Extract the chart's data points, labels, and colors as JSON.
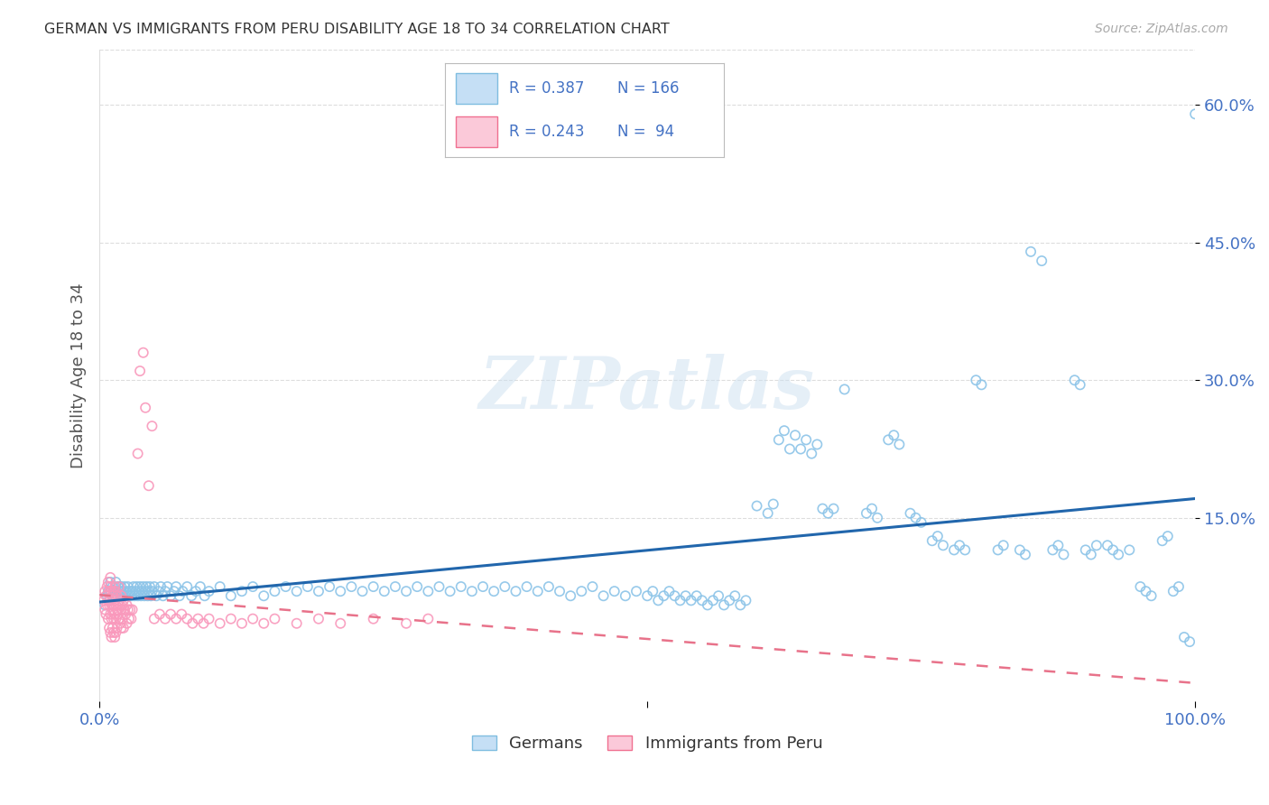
{
  "title": "GERMAN VS IMMIGRANTS FROM PERU DISABILITY AGE 18 TO 34 CORRELATION CHART",
  "source": "Source: ZipAtlas.com",
  "ylabel": "Disability Age 18 to 34",
  "y_tick_labels": [
    "60.0%",
    "45.0%",
    "30.0%",
    "15.0%"
  ],
  "y_tick_values": [
    0.6,
    0.45,
    0.3,
    0.15
  ],
  "xlim": [
    0.0,
    1.0
  ],
  "ylim": [
    -0.05,
    0.66
  ],
  "legend_blue_label": "Germans",
  "legend_pink_label": "Immigrants from Peru",
  "r_blue": "R = 0.387",
  "n_blue": "N = 166",
  "r_pink": "R = 0.243",
  "n_pink": "N =  94",
  "blue_scatter_color": "#8cc4e8",
  "pink_scatter_color": "#f999bc",
  "blue_line_color": "#2166ac",
  "pink_line_color": "#e8728a",
  "pink_dash_color": "#d4a0b0",
  "watermark": "ZIPatlas",
  "background_color": "#ffffff",
  "grid_color": "#dddddd",
  "blue_scatter": [
    [
      0.005,
      0.055
    ],
    [
      0.007,
      0.065
    ],
    [
      0.008,
      0.07
    ],
    [
      0.009,
      0.06
    ],
    [
      0.01,
      0.07
    ],
    [
      0.01,
      0.08
    ],
    [
      0.012,
      0.065
    ],
    [
      0.012,
      0.075
    ],
    [
      0.013,
      0.07
    ],
    [
      0.014,
      0.065
    ],
    [
      0.015,
      0.07
    ],
    [
      0.015,
      0.08
    ],
    [
      0.016,
      0.065
    ],
    [
      0.017,
      0.075
    ],
    [
      0.018,
      0.07
    ],
    [
      0.018,
      0.075
    ],
    [
      0.019,
      0.065
    ],
    [
      0.02,
      0.07
    ],
    [
      0.02,
      0.075
    ],
    [
      0.021,
      0.065
    ],
    [
      0.022,
      0.07
    ],
    [
      0.023,
      0.075
    ],
    [
      0.024,
      0.065
    ],
    [
      0.025,
      0.07
    ],
    [
      0.026,
      0.075
    ],
    [
      0.027,
      0.065
    ],
    [
      0.028,
      0.07
    ],
    [
      0.029,
      0.065
    ],
    [
      0.03,
      0.07
    ],
    [
      0.031,
      0.075
    ],
    [
      0.032,
      0.065
    ],
    [
      0.033,
      0.07
    ],
    [
      0.034,
      0.075
    ],
    [
      0.035,
      0.065
    ],
    [
      0.036,
      0.07
    ],
    [
      0.037,
      0.075
    ],
    [
      0.038,
      0.065
    ],
    [
      0.039,
      0.07
    ],
    [
      0.04,
      0.075
    ],
    [
      0.041,
      0.065
    ],
    [
      0.042,
      0.07
    ],
    [
      0.043,
      0.075
    ],
    [
      0.044,
      0.065
    ],
    [
      0.045,
      0.07
    ],
    [
      0.046,
      0.075
    ],
    [
      0.047,
      0.065
    ],
    [
      0.048,
      0.07
    ],
    [
      0.05,
      0.075
    ],
    [
      0.052,
      0.065
    ],
    [
      0.054,
      0.07
    ],
    [
      0.056,
      0.075
    ],
    [
      0.058,
      0.065
    ],
    [
      0.06,
      0.07
    ],
    [
      0.062,
      0.075
    ],
    [
      0.065,
      0.065
    ],
    [
      0.068,
      0.07
    ],
    [
      0.07,
      0.075
    ],
    [
      0.073,
      0.065
    ],
    [
      0.076,
      0.07
    ],
    [
      0.08,
      0.075
    ],
    [
      0.084,
      0.065
    ],
    [
      0.088,
      0.07
    ],
    [
      0.092,
      0.075
    ],
    [
      0.096,
      0.065
    ],
    [
      0.1,
      0.07
    ],
    [
      0.11,
      0.075
    ],
    [
      0.12,
      0.065
    ],
    [
      0.13,
      0.07
    ],
    [
      0.14,
      0.075
    ],
    [
      0.15,
      0.065
    ],
    [
      0.16,
      0.07
    ],
    [
      0.17,
      0.075
    ],
    [
      0.18,
      0.07
    ],
    [
      0.19,
      0.075
    ],
    [
      0.2,
      0.07
    ],
    [
      0.21,
      0.075
    ],
    [
      0.22,
      0.07
    ],
    [
      0.23,
      0.075
    ],
    [
      0.24,
      0.07
    ],
    [
      0.25,
      0.075
    ],
    [
      0.26,
      0.07
    ],
    [
      0.27,
      0.075
    ],
    [
      0.28,
      0.07
    ],
    [
      0.29,
      0.075
    ],
    [
      0.3,
      0.07
    ],
    [
      0.31,
      0.075
    ],
    [
      0.32,
      0.07
    ],
    [
      0.33,
      0.075
    ],
    [
      0.34,
      0.07
    ],
    [
      0.35,
      0.075
    ],
    [
      0.36,
      0.07
    ],
    [
      0.37,
      0.075
    ],
    [
      0.38,
      0.07
    ],
    [
      0.39,
      0.075
    ],
    [
      0.4,
      0.07
    ],
    [
      0.41,
      0.075
    ],
    [
      0.42,
      0.07
    ],
    [
      0.43,
      0.065
    ],
    [
      0.44,
      0.07
    ],
    [
      0.45,
      0.075
    ],
    [
      0.46,
      0.065
    ],
    [
      0.47,
      0.07
    ],
    [
      0.48,
      0.065
    ],
    [
      0.49,
      0.07
    ],
    [
      0.5,
      0.065
    ],
    [
      0.505,
      0.07
    ],
    [
      0.51,
      0.06
    ],
    [
      0.515,
      0.065
    ],
    [
      0.52,
      0.07
    ],
    [
      0.525,
      0.065
    ],
    [
      0.53,
      0.06
    ],
    [
      0.535,
      0.065
    ],
    [
      0.54,
      0.06
    ],
    [
      0.545,
      0.065
    ],
    [
      0.55,
      0.06
    ],
    [
      0.555,
      0.055
    ],
    [
      0.56,
      0.06
    ],
    [
      0.565,
      0.065
    ],
    [
      0.57,
      0.055
    ],
    [
      0.575,
      0.06
    ],
    [
      0.58,
      0.065
    ],
    [
      0.585,
      0.055
    ],
    [
      0.59,
      0.06
    ],
    [
      0.6,
      0.163
    ],
    [
      0.61,
      0.155
    ],
    [
      0.615,
      0.165
    ],
    [
      0.62,
      0.235
    ],
    [
      0.625,
      0.245
    ],
    [
      0.63,
      0.225
    ],
    [
      0.635,
      0.24
    ],
    [
      0.64,
      0.225
    ],
    [
      0.645,
      0.235
    ],
    [
      0.65,
      0.22
    ],
    [
      0.655,
      0.23
    ],
    [
      0.66,
      0.16
    ],
    [
      0.665,
      0.155
    ],
    [
      0.67,
      0.16
    ],
    [
      0.68,
      0.29
    ],
    [
      0.7,
      0.155
    ],
    [
      0.705,
      0.16
    ],
    [
      0.71,
      0.15
    ],
    [
      0.72,
      0.235
    ],
    [
      0.725,
      0.24
    ],
    [
      0.73,
      0.23
    ],
    [
      0.74,
      0.155
    ],
    [
      0.745,
      0.15
    ],
    [
      0.75,
      0.145
    ],
    [
      0.76,
      0.125
    ],
    [
      0.765,
      0.13
    ],
    [
      0.77,
      0.12
    ],
    [
      0.78,
      0.115
    ],
    [
      0.785,
      0.12
    ],
    [
      0.79,
      0.115
    ],
    [
      0.8,
      0.3
    ],
    [
      0.805,
      0.295
    ],
    [
      0.82,
      0.115
    ],
    [
      0.825,
      0.12
    ],
    [
      0.84,
      0.115
    ],
    [
      0.845,
      0.11
    ],
    [
      0.85,
      0.44
    ],
    [
      0.86,
      0.43
    ],
    [
      0.87,
      0.115
    ],
    [
      0.875,
      0.12
    ],
    [
      0.88,
      0.11
    ],
    [
      0.89,
      0.3
    ],
    [
      0.895,
      0.295
    ],
    [
      0.9,
      0.115
    ],
    [
      0.905,
      0.11
    ],
    [
      0.91,
      0.12
    ],
    [
      0.92,
      0.12
    ],
    [
      0.925,
      0.115
    ],
    [
      0.93,
      0.11
    ],
    [
      0.94,
      0.115
    ],
    [
      0.95,
      0.075
    ],
    [
      0.955,
      0.07
    ],
    [
      0.96,
      0.065
    ],
    [
      0.97,
      0.125
    ],
    [
      0.975,
      0.13
    ],
    [
      0.98,
      0.07
    ],
    [
      0.985,
      0.075
    ],
    [
      0.99,
      0.02
    ],
    [
      0.995,
      0.015
    ],
    [
      1.0,
      0.59
    ]
  ],
  "pink_scatter": [
    [
      0.004,
      0.06
    ],
    [
      0.005,
      0.07
    ],
    [
      0.005,
      0.05
    ],
    [
      0.006,
      0.065
    ],
    [
      0.006,
      0.045
    ],
    [
      0.007,
      0.055
    ],
    [
      0.007,
      0.075
    ],
    [
      0.008,
      0.06
    ],
    [
      0.008,
      0.04
    ],
    [
      0.008,
      0.08
    ],
    [
      0.009,
      0.055
    ],
    [
      0.009,
      0.07
    ],
    [
      0.009,
      0.03
    ],
    [
      0.01,
      0.06
    ],
    [
      0.01,
      0.045
    ],
    [
      0.01,
      0.075
    ],
    [
      0.01,
      0.025
    ],
    [
      0.01,
      0.085
    ],
    [
      0.011,
      0.055
    ],
    [
      0.011,
      0.04
    ],
    [
      0.011,
      0.07
    ],
    [
      0.011,
      0.02
    ],
    [
      0.012,
      0.05
    ],
    [
      0.012,
      0.065
    ],
    [
      0.012,
      0.03
    ],
    [
      0.013,
      0.055
    ],
    [
      0.013,
      0.04
    ],
    [
      0.013,
      0.07
    ],
    [
      0.013,
      0.025
    ],
    [
      0.014,
      0.06
    ],
    [
      0.014,
      0.045
    ],
    [
      0.014,
      0.075
    ],
    [
      0.014,
      0.02
    ],
    [
      0.015,
      0.055
    ],
    [
      0.015,
      0.04
    ],
    [
      0.015,
      0.07
    ],
    [
      0.015,
      0.025
    ],
    [
      0.016,
      0.05
    ],
    [
      0.016,
      0.065
    ],
    [
      0.016,
      0.03
    ],
    [
      0.017,
      0.055
    ],
    [
      0.017,
      0.045
    ],
    [
      0.018,
      0.06
    ],
    [
      0.018,
      0.04
    ],
    [
      0.018,
      0.075
    ],
    [
      0.019,
      0.055
    ],
    [
      0.019,
      0.035
    ],
    [
      0.02,
      0.05
    ],
    [
      0.02,
      0.065
    ],
    [
      0.02,
      0.03
    ],
    [
      0.021,
      0.055
    ],
    [
      0.021,
      0.04
    ],
    [
      0.022,
      0.06
    ],
    [
      0.022,
      0.03
    ],
    [
      0.023,
      0.05
    ],
    [
      0.024,
      0.045
    ],
    [
      0.025,
      0.055
    ],
    [
      0.025,
      0.035
    ],
    [
      0.026,
      0.05
    ],
    [
      0.027,
      0.04
    ],
    [
      0.028,
      0.05
    ],
    [
      0.029,
      0.04
    ],
    [
      0.03,
      0.05
    ],
    [
      0.035,
      0.22
    ],
    [
      0.037,
      0.31
    ],
    [
      0.04,
      0.33
    ],
    [
      0.042,
      0.27
    ],
    [
      0.045,
      0.185
    ],
    [
      0.048,
      0.25
    ],
    [
      0.05,
      0.04
    ],
    [
      0.055,
      0.045
    ],
    [
      0.06,
      0.04
    ],
    [
      0.065,
      0.045
    ],
    [
      0.07,
      0.04
    ],
    [
      0.075,
      0.045
    ],
    [
      0.08,
      0.04
    ],
    [
      0.085,
      0.035
    ],
    [
      0.09,
      0.04
    ],
    [
      0.095,
      0.035
    ],
    [
      0.1,
      0.04
    ],
    [
      0.11,
      0.035
    ],
    [
      0.12,
      0.04
    ],
    [
      0.13,
      0.035
    ],
    [
      0.14,
      0.04
    ],
    [
      0.15,
      0.035
    ],
    [
      0.16,
      0.04
    ],
    [
      0.18,
      0.035
    ],
    [
      0.2,
      0.04
    ],
    [
      0.22,
      0.035
    ],
    [
      0.25,
      0.04
    ],
    [
      0.28,
      0.035
    ],
    [
      0.3,
      0.04
    ]
  ]
}
